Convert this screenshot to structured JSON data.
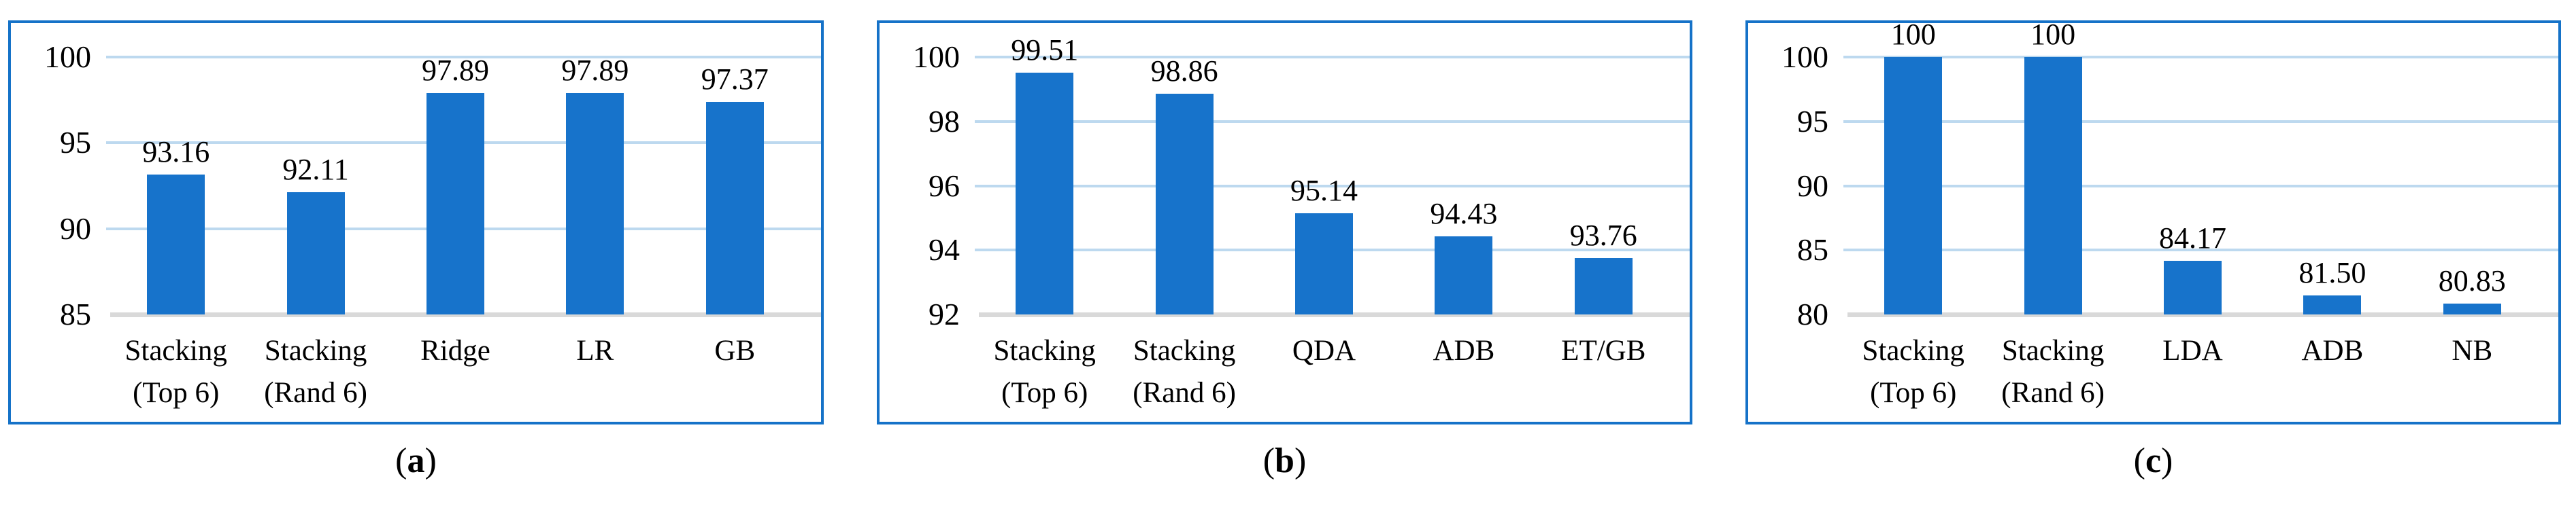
{
  "colors": {
    "bar": "#1773CB",
    "panel_border": "#1572C8",
    "gridline": "#BDD9EF",
    "axis_baseline": "#D9D9D9",
    "text": "#000000"
  },
  "chart_data": [
    {
      "type": "bar",
      "caption": {
        "open": "(",
        "letter": "a",
        "close": ")"
      },
      "categories": [
        "Stacking (Top 6)",
        "Stacking (Rand 6)",
        "Ridge",
        "LR",
        "GB"
      ],
      "category_lines": [
        [
          "Stacking",
          "(Top 6)"
        ],
        [
          "Stacking",
          "(Rand 6)"
        ],
        [
          "Ridge"
        ],
        [
          "LR"
        ],
        [
          "GB"
        ]
      ],
      "values": [
        93.16,
        92.11,
        97.89,
        97.89,
        97.37
      ],
      "value_labels": [
        "93.16",
        "92.11",
        "97.89",
        "97.89",
        "97.37"
      ],
      "ylim": [
        85,
        100
      ],
      "yticks": [
        100,
        95,
        90,
        85
      ],
      "grid": true,
      "legend": false
    },
    {
      "type": "bar",
      "caption": {
        "open": "(",
        "letter": "b",
        "close": ")"
      },
      "categories": [
        "Stacking (Top 6)",
        "Stacking (Rand 6)",
        "QDA",
        "ADB",
        "ET/GB"
      ],
      "category_lines": [
        [
          "Stacking",
          "(Top 6)"
        ],
        [
          "Stacking",
          "(Rand 6)"
        ],
        [
          "QDA"
        ],
        [
          "ADB"
        ],
        [
          "ET/GB"
        ]
      ],
      "values": [
        99.51,
        98.86,
        95.14,
        94.43,
        93.76
      ],
      "value_labels": [
        "99.51",
        "98.86",
        "95.14",
        "94.43",
        "93.76"
      ],
      "ylim": [
        92,
        100
      ],
      "yticks": [
        100,
        98,
        96,
        94,
        92
      ],
      "grid": true,
      "legend": false
    },
    {
      "type": "bar",
      "caption": {
        "open": "(",
        "letter": "c",
        "close": ")"
      },
      "categories": [
        "Stacking (Top 6)",
        "Stacking (Rand 6)",
        "LDA",
        "ADB",
        "NB"
      ],
      "category_lines": [
        [
          "Stacking",
          "(Top 6)"
        ],
        [
          "Stacking",
          "(Rand 6)"
        ],
        [
          "LDA"
        ],
        [
          "ADB"
        ],
        [
          "NB"
        ]
      ],
      "values": [
        100,
        100,
        84.17,
        81.5,
        80.83
      ],
      "value_labels": [
        "100",
        "100",
        "84.17",
        "81.50",
        "80.83"
      ],
      "ylim": [
        80,
        100
      ],
      "yticks": [
        100,
        95,
        90,
        85,
        80
      ],
      "grid": true,
      "legend": false
    }
  ]
}
